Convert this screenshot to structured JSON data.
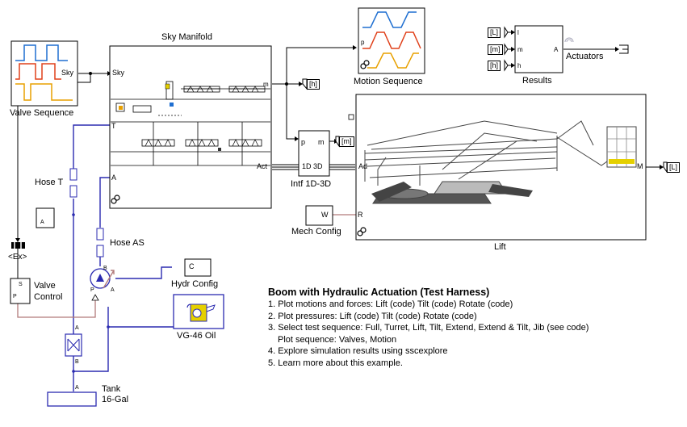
{
  "blocks": {
    "valve_sequence": "Valve Sequence",
    "sky_manifold": "Sky Manifold",
    "motion_sequence": "Motion Sequence",
    "results": "Results",
    "actuators": "Actuators",
    "lift": "Lift",
    "intf": "Intf 1D-3D",
    "mech_config": "Mech Config",
    "hose_t": "Hose T",
    "hose_as": "Hose AS",
    "hydr_config": "Hydr Config",
    "oil": "VG-46 Oil",
    "valve_control_line1": "Valve",
    "valve_control_line2": "Control",
    "tank_line1": "Tank",
    "tank_line2": "16-Gal",
    "ex_tag": "<Ex>"
  },
  "ports": {
    "sky": "Sky",
    "sky_in": "Sky",
    "t": "T",
    "a": "A",
    "act": "Act",
    "m": "m",
    "p": "p",
    "m_out": "m",
    "intf_inner": "1D 3D",
    "ad": "Ad",
    "lift_m": "M",
    "w": "W",
    "r": "R",
    "l_in": "l",
    "m_in": "m",
    "h_in": "h",
    "a_out": "A",
    "c": "C",
    "p_vc": "P",
    "s_vc": "S",
    "hose_a": "A",
    "pump_b": "B",
    "pump_a": "A",
    "pump_p": "P",
    "rv_a": "A",
    "rv_b": "B",
    "tank_a": "A"
  },
  "goto_tags": {
    "h": "[h]",
    "m": "[m]",
    "l": "[L]",
    "from_l": "[L]",
    "from_m": "[m]",
    "from_h": "[h]"
  },
  "notes": {
    "title": "Boom with Hydraulic Actuation (Test Harness)",
    "items": [
      "1. Plot motions and forces: Lift (code) Tilt (code) Rotate (code)",
      "2. Plot pressures: Lift (code) Tilt (code) Rotate (code)",
      "3. Select test sequence: Full, Turret, Lift, Tilt, Extend, Extend & Tilt, Jib (see code)"
    ],
    "sub_item": "Plot sequence: Valves, Motion",
    "items2": [
      "4. Explore simulation results using sscexplore",
      "5. Learn more about this example."
    ]
  },
  "colors": {
    "hydraulic_line": "#2b2bb0",
    "physical_signal": "#b27b7b",
    "signal": "#000000",
    "wave_blue": "#1f6fd1",
    "wave_red": "#e0401a",
    "wave_orange": "#e8a000",
    "boom_yellow": "#e5d000"
  }
}
